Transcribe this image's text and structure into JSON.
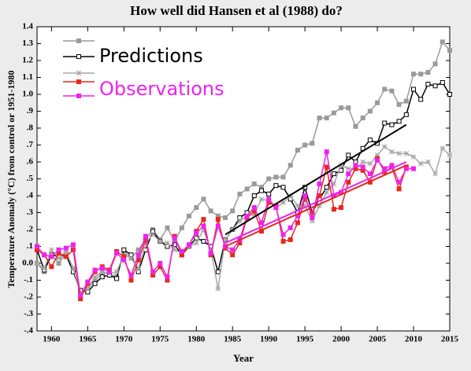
{
  "chart_data": {
    "type": "line",
    "title": "How well did Hansen et al (1988) do?",
    "xlabel": "Year",
    "ylabel": "Temperature Anomaly (°C) from control or 1951-1980",
    "x": [
      1958,
      1959,
      1960,
      1961,
      1962,
      1963,
      1964,
      1965,
      1966,
      1967,
      1968,
      1969,
      1970,
      1971,
      1972,
      1973,
      1974,
      1975,
      1976,
      1977,
      1978,
      1979,
      1980,
      1981,
      1982,
      1983,
      1984,
      1985,
      1986,
      1987,
      1988,
      1989,
      1990,
      1991,
      1992,
      1993,
      1994,
      1995,
      1996,
      1997,
      1998,
      1999,
      2000,
      2001,
      2002,
      2003,
      2004,
      2005,
      2006,
      2007,
      2008,
      2009,
      2010,
      2011,
      2012,
      2013,
      2014,
      2015
    ],
    "series": [
      {
        "color": "#9a9a9a",
        "marker": "square",
        "values": [
          0.0,
          -0.05,
          0.05,
          0.0,
          0.06,
          -0.03,
          -0.18,
          -0.15,
          -0.1,
          -0.06,
          -0.06,
          -0.08,
          0.07,
          0.03,
          0.08,
          0.14,
          0.2,
          0.14,
          0.21,
          0.13,
          0.21,
          0.28,
          0.33,
          0.38,
          0.31,
          0.28,
          0.27,
          0.31,
          0.41,
          0.44,
          0.47,
          0.45,
          0.5,
          0.51,
          0.51,
          0.58,
          0.67,
          0.7,
          0.71,
          0.86,
          0.86,
          0.89,
          0.92,
          0.92,
          0.81,
          0.86,
          0.9,
          0.95,
          1.03,
          1.02,
          0.94,
          0.96,
          1.12,
          1.12,
          1.13,
          1.18,
          1.31,
          1.26
        ]
      },
      {
        "name": "Predictions",
        "color": "#000000",
        "marker": "open-square",
        "values": [
          0.08,
          -0.04,
          0.05,
          0.04,
          0.05,
          -0.05,
          -0.16,
          -0.17,
          -0.12,
          -0.08,
          -0.07,
          -0.09,
          0.08,
          0.05,
          -0.05,
          0.08,
          0.19,
          0.13,
          0.1,
          0.11,
          0.05,
          0.1,
          0.15,
          0.13,
          0.1,
          -0.05,
          0.14,
          0.2,
          0.27,
          0.3,
          0.4,
          0.43,
          0.41,
          0.46,
          0.45,
          0.38,
          0.3,
          0.45,
          0.3,
          0.38,
          0.45,
          0.53,
          0.55,
          0.64,
          0.6,
          0.68,
          0.73,
          0.71,
          0.83,
          0.82,
          0.84,
          0.88,
          1.03,
          0.97,
          1.06,
          1.05,
          1.07,
          1.0
        ]
      },
      {
        "color": "#a8a8a8",
        "marker": "star",
        "values": [
          0.0,
          -0.03,
          0.08,
          0.03,
          0.07,
          -0.03,
          -0.17,
          -0.15,
          -0.08,
          -0.05,
          -0.06,
          -0.05,
          0.05,
          0.03,
          -0.03,
          0.12,
          0.17,
          0.13,
          0.12,
          0.08,
          0.06,
          0.1,
          0.12,
          0.2,
          0.08,
          -0.15,
          0.14,
          0.2,
          0.25,
          0.28,
          0.29,
          0.38,
          0.37,
          0.33,
          0.36,
          0.4,
          0.34,
          0.34,
          0.25,
          0.34,
          0.42,
          0.47,
          0.58,
          0.56,
          0.56,
          0.6,
          0.59,
          0.64,
          0.69,
          0.66,
          0.65,
          0.65,
          0.63,
          0.59,
          0.6,
          0.53,
          0.68,
          0.64
        ]
      },
      {
        "color": "#e8281a",
        "marker": "square",
        "values": [
          0.08,
          0.05,
          -0.02,
          0.06,
          0.04,
          0.08,
          -0.21,
          -0.12,
          -0.05,
          -0.02,
          -0.04,
          0.07,
          0.04,
          -0.1,
          0.02,
          0.14,
          -0.07,
          -0.02,
          -0.1,
          0.16,
          0.05,
          0.11,
          0.19,
          0.26,
          0.05,
          0.26,
          0.09,
          0.05,
          0.12,
          0.27,
          0.31,
          0.19,
          0.36,
          0.34,
          0.13,
          0.14,
          0.24,
          0.38,
          0.3,
          0.4,
          0.57,
          0.32,
          0.33,
          0.48,
          0.56,
          0.55,
          0.48,
          0.62,
          0.54,
          0.57,
          0.44,
          0.57,
          null,
          null,
          null,
          null,
          null,
          null
        ]
      },
      {
        "name": "Observations",
        "color": "#ee22ee",
        "marker": "square",
        "values": [
          0.1,
          0.05,
          0.04,
          0.08,
          0.09,
          0.11,
          -0.19,
          -0.11,
          -0.04,
          -0.03,
          -0.05,
          0.06,
          0.02,
          -0.07,
          0.05,
          0.16,
          -0.05,
          0.0,
          -0.08,
          0.15,
          0.07,
          0.11,
          0.18,
          0.22,
          0.06,
          0.22,
          0.1,
          0.08,
          0.14,
          0.28,
          0.33,
          0.24,
          0.38,
          0.33,
          0.17,
          0.21,
          0.28,
          0.4,
          0.27,
          0.47,
          0.66,
          0.4,
          0.42,
          0.53,
          0.58,
          0.57,
          0.53,
          0.61,
          0.56,
          0.58,
          0.48,
          0.56,
          0.56,
          null,
          null,
          null,
          null,
          null
        ]
      }
    ],
    "trends": [
      {
        "color": "#000000",
        "x": [
          1984,
          2009
        ],
        "values": [
          0.17,
          0.82
        ]
      },
      {
        "color": "#e8281a",
        "x": [
          1984,
          2009
        ],
        "values": [
          0.1,
          0.58
        ]
      },
      {
        "color": "#ee22ee",
        "x": [
          1984,
          2009
        ],
        "values": [
          0.12,
          0.6
        ]
      }
    ],
    "xlim": [
      1958,
      2015
    ],
    "xticks": [
      1960,
      1965,
      1970,
      1975,
      1980,
      1985,
      1990,
      1995,
      2000,
      2005,
      2010,
      2015
    ],
    "ylim": [
      -0.4,
      1.4
    ],
    "yticks": [
      1.4,
      1.3,
      1.2,
      1.1,
      {
        "value": 1.0,
        "label": "1.0"
      },
      {
        "value": 0.9,
        "label": ".9"
      },
      {
        "value": 0.8,
        "label": ".8"
      },
      {
        "value": 0.7,
        "label": ".7"
      },
      {
        "value": 0.6,
        "label": ".6"
      },
      {
        "value": 0.5,
        "label": ".5"
      },
      {
        "value": 0.4,
        "label": ".4"
      },
      {
        "value": 0.3,
        "label": ".3"
      },
      {
        "value": 0.2,
        "label": ".2"
      },
      {
        "value": 0.1,
        "label": ".1"
      },
      {
        "value": 0.0,
        "label": "0.0"
      },
      {
        "value": -0.1,
        "label": "-.1"
      },
      {
        "value": -0.2,
        "label": "-.2"
      },
      {
        "value": -0.3,
        "label": "-.3"
      },
      {
        "value": -0.4,
        "label": "-.4"
      }
    ]
  }
}
